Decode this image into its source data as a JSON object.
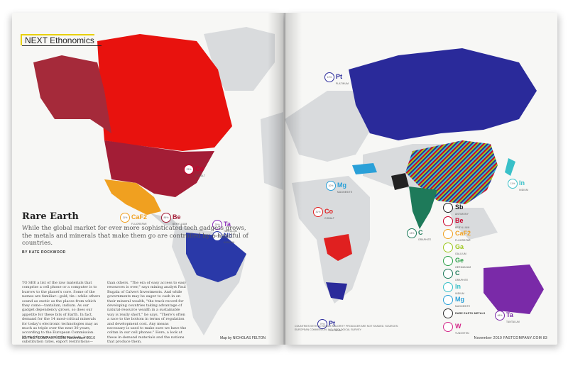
{
  "section_tag": "NEXT Ethonomics",
  "headline": "Rare Earth",
  "dek": "While the global market for ever more sophisticated tech gadgets grows, the metals and minerals that make them go are controlled by a handful of countries.",
  "byline": "BY KATE ROCKWOOD",
  "body_col1": "TO SEE a list of the raw materials that comprise a cell phone or a computer is to burrow to the planet's core. Some of the names are familiar—gold, tin—while others sound as exotic as the places from which they come—tantalum, indium. As our gadget dependency grows, so does our appetite for these bits of Earth. In fact, demand for the 14 most-critical minerals for today's electronic technologies may as much as triple over the next 30 years, according to the European Commission. Myriad factors—volatile markets, low substitution rates, export restrictions—make some materials more precious",
  "body_col2": "than others. \"The era of easy access to easy resources is over,\" says mining analyst Paul Bugala of Calvert Investments. And while governments may be eager to cash in on their mineral wealth, \"the track record for developing countries taking advantage of natural-resource wealth in a sustainable way is really short,\" he says. \"There's often a race to the bottom in terms of regulation and development cost. Any means necessary is used to make sure we have the coltan in our cell phones.\" Here, a look at these in-demand materials and the nations that produce them.",
  "credit": "Map by NICHOLAS FELTON",
  "folio_left": "82 FASTCOMPANY.COM November 2010",
  "folio_right": "November 2010 FASTCOMPANY.COM 83",
  "source_note": "COUNTRIES WITH NO SINGLE MAJORITY PRODUCER ARE NOT SHADED. SOURCES: EUROPEAN COMMISSION; U.S. GEOLOGICAL SURVEY",
  "left_badges": [
    {
      "symbol": "Co",
      "name": "COBALT",
      "pct": "23%",
      "color": "#c9002a"
    },
    {
      "symbol": "CaF2",
      "name": "FLUORSPAR",
      "pct": "11%",
      "color": "#f0a020"
    },
    {
      "symbol": "Be",
      "name": "BERYLLIUM",
      "pct": "85%",
      "color": "#a31d36"
    },
    {
      "symbol": "Ta",
      "name": "TANTALUM",
      "pct": "20%",
      "color": "#8a2fb8"
    },
    {
      "symbol": "Nb",
      "name": "NIOBIUM",
      "pct": "92%",
      "color": "#2a39a8"
    }
  ],
  "right_badges": [
    {
      "symbol": "Pt",
      "name": "PLATINUM",
      "pct": "13%",
      "color": "#2a2a9a"
    },
    {
      "symbol": "Mg",
      "name": "MAGNESITE",
      "pct": "10%",
      "color": "#2aa0d8"
    },
    {
      "symbol": "In",
      "name": "INDIUM",
      "pct": "11%",
      "color": "#39c0c8"
    },
    {
      "symbol": "Co",
      "name": "COBALT",
      "pct": "41%",
      "color": "#e02020"
    },
    {
      "symbol": "C",
      "name": "GRAPHITE",
      "pct": "13%",
      "color": "#1e7a5a"
    },
    {
      "symbol": "Pt",
      "name": "PLATINUM",
      "pct": "79%",
      "color": "#2a2a9a"
    },
    {
      "symbol": "Ta",
      "name": "TANTALUM",
      "pct": "48%",
      "color": "#7a2aa8"
    }
  ],
  "legend_title": "",
  "legend": [
    {
      "symbol": "Sb",
      "name": "ANTIMONY",
      "color": "#222222"
    },
    {
      "symbol": "Be",
      "name": "BERYLLIUM",
      "color": "#c9002a"
    },
    {
      "symbol": "CaF2",
      "name": "FLUORSPAR",
      "color": "#f0a020"
    },
    {
      "symbol": "Ga",
      "name": "GALLIUM",
      "color": "#9ec820"
    },
    {
      "symbol": "Ge",
      "name": "GERMANIUM",
      "color": "#2ea04a"
    },
    {
      "symbol": "C",
      "name": "GRAPHITE",
      "color": "#1e7a5a"
    },
    {
      "symbol": "In",
      "name": "INDIUM",
      "color": "#39c0c8"
    },
    {
      "symbol": "Mg",
      "name": "MAGNESITE",
      "color": "#2aa0d8"
    },
    {
      "symbol": "REE",
      "name": "RARE EARTH METALS",
      "color": "#333333"
    },
    {
      "symbol": "W",
      "name": "TUNGSTEN",
      "color": "#d42a8a"
    }
  ]
}
